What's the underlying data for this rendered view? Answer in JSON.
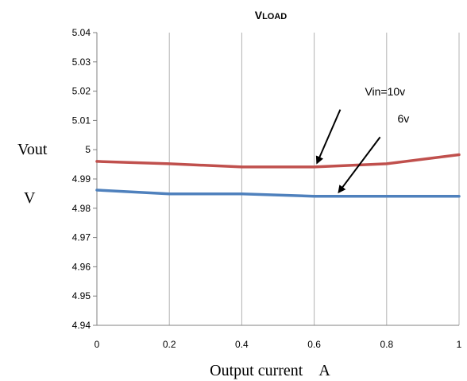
{
  "chart_data": {
    "type": "line",
    "title_lead": "V",
    "title_rest": "LOAD",
    "xlabel": "Output current　A",
    "ylabel_top": "Vout",
    "ylabel_bottom": "V",
    "x": [
      0,
      0.2,
      0.4,
      0.6,
      0.8,
      1
    ],
    "x_tick_labels": [
      "0",
      "0.2",
      "0.4",
      "0.6",
      "0.8",
      "1"
    ],
    "y_tick_values": [
      4.94,
      4.95,
      4.96,
      4.97,
      4.98,
      4.99,
      5,
      5.01,
      5.02,
      5.03,
      5.04
    ],
    "y_tick_labels": [
      "4.94",
      "4.95",
      "4.96",
      "4.97",
      "4.98",
      "4.99",
      "5",
      "5.01",
      "5.02",
      "5.03",
      "5.04"
    ],
    "xlim": [
      0,
      1
    ],
    "ylim": [
      4.94,
      5.04
    ],
    "grid": "vertical",
    "series": [
      {
        "values": [
          4.996,
          4.9952,
          4.9941,
          4.9941,
          4.9952,
          4.9983
        ],
        "color": "#c0504d"
      },
      {
        "values": [
          4.9862,
          4.9849,
          4.9849,
          4.9841,
          4.9841,
          4.9841
        ],
        "color": "#4f81bd"
      }
    ],
    "annotations": [
      {
        "text": "Vin=10v",
        "x": 0.74,
        "y": 5.0185,
        "arrow_from": [
          0.672,
          5.0137
        ],
        "arrow_to": [
          0.608,
          4.9955
        ]
      },
      {
        "text": "6v",
        "x": 0.83,
        "y": 5.0093,
        "arrow_from": [
          0.782,
          5.0043
        ],
        "arrow_to": [
          0.668,
          4.9855
        ]
      }
    ]
  }
}
